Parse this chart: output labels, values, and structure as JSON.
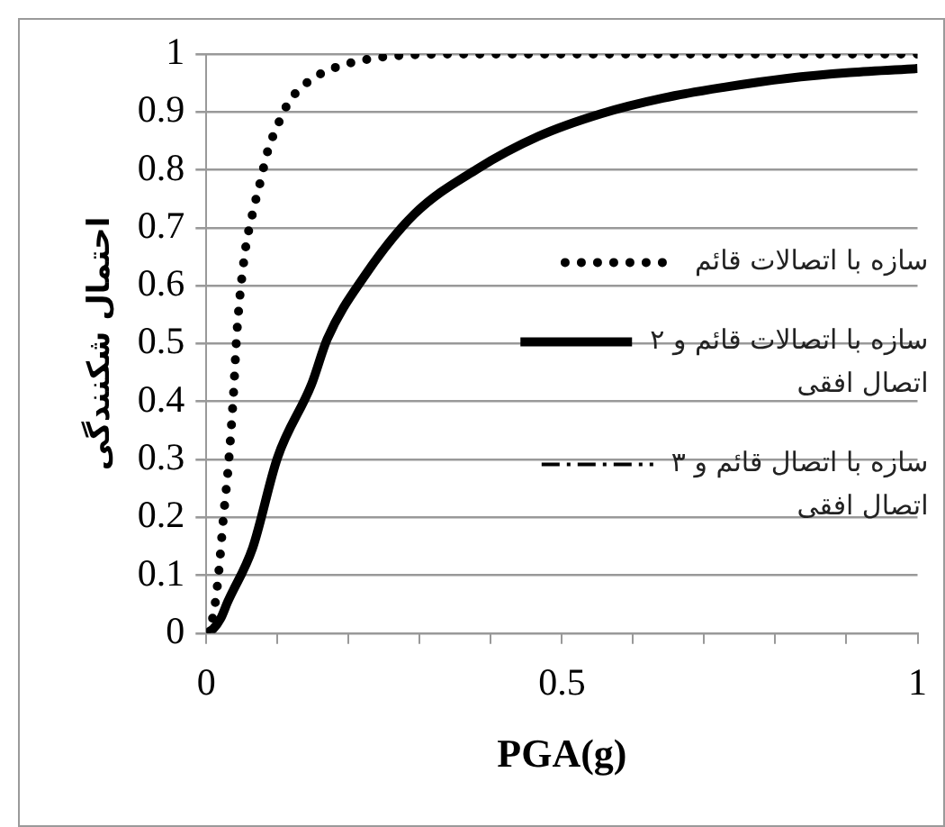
{
  "chart_data": {
    "type": "line",
    "xlabel": "PGA(g)",
    "ylabel": "احتمال شکنندگی",
    "xlim": [
      0,
      1
    ],
    "ylim": [
      0,
      1
    ],
    "xticks": [
      0,
      {
        "value": 0.1,
        "label": null
      },
      {
        "value": 0.2,
        "label": null
      },
      {
        "value": 0.3,
        "label": null
      },
      {
        "value": 0.4,
        "label": null
      },
      0.5,
      {
        "value": 0.6,
        "label": null
      },
      {
        "value": 0.7,
        "label": null
      },
      {
        "value": 0.8,
        "label": null
      },
      {
        "value": 0.9,
        "label": null
      },
      1
    ],
    "yticks": [
      0,
      0.1,
      0.2,
      0.3,
      0.4,
      0.5,
      0.6,
      0.7,
      0.8,
      0.9,
      1
    ],
    "grid": "y",
    "legend": "right",
    "marker": "none",
    "series": [
      {
        "name": "سازه با اتصالات قائم",
        "color": "#000000",
        "line_style": "dotted",
        "x": [
          0,
          0.01,
          0.017,
          0.024,
          0.031,
          0.038,
          0.043,
          0.054,
          0.065,
          0.078,
          0.084,
          0.104,
          0.117,
          0.136,
          0.161,
          0.189,
          0.218,
          0.249,
          0.28,
          0.35,
          0.5,
          0.75,
          1
        ],
        "values": [
          0,
          0.033,
          0.1,
          0.2,
          0.29,
          0.41,
          0.52,
          0.655,
          0.725,
          0.79,
          0.823,
          0.888,
          0.919,
          0.945,
          0.966,
          0.98,
          0.989,
          0.995,
          0.998,
          1,
          1,
          1,
          1
        ]
      },
      {
        "name": "سازه با اتصالات قائم و ۲ اتصال افقی",
        "color": "#000000",
        "line_style": "solid",
        "x": [
          0,
          0.01,
          0.02,
          0.03,
          0.065,
          0.1,
          0.148,
          0.17,
          0.222,
          0.292,
          0.38,
          0.467,
          0.555,
          0.642,
          0.73,
          0.817,
          0.905,
          1
        ],
        "values": [
          0,
          0.008,
          0.025,
          0.054,
          0.147,
          0.303,
          0.43,
          0.508,
          0.616,
          0.723,
          0.801,
          0.858,
          0.897,
          0.924,
          0.943,
          0.958,
          0.968,
          0.975
        ]
      },
      {
        "name": "سازه با اتصال قائم و ۳ اتصال افقی",
        "color": "#000000",
        "line_style": "dashed"
      }
    ]
  }
}
